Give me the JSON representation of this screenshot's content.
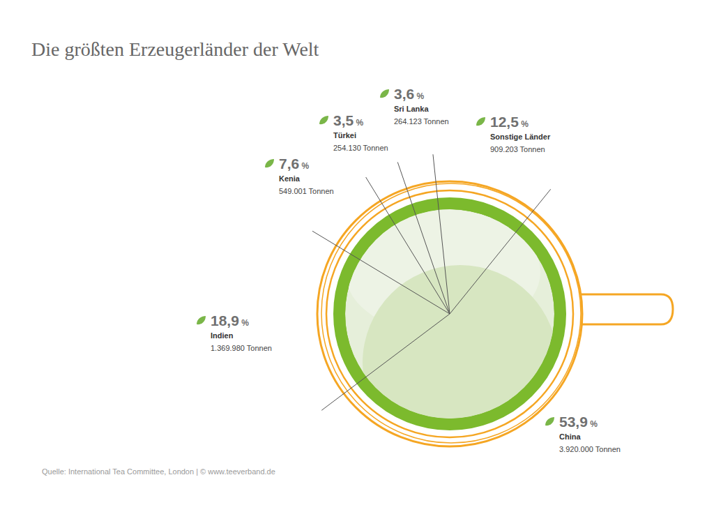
{
  "chart_data": {
    "type": "pie",
    "title": "Die größten Erzeugerländer der Welt",
    "source": "Quelle: International Tea Committee, London | © www.teeverband.de",
    "categories": [
      "China",
      "Indien",
      "Kenia",
      "Türkei",
      "Sri Lanka",
      "Sonstige Länder"
    ],
    "values": [
      53.9,
      18.9,
      7.6,
      3.5,
      3.6,
      12.5
    ],
    "value_labels": [
      "53,9 %",
      "18,9 %",
      "7,6 %",
      "3,5 %",
      "3,6 %",
      "12,5 %"
    ],
    "tonnes_labels": [
      "3.920.000 Tonnen",
      "1.369.980 Tonnen",
      "549.001 Tonnen",
      "254.130 Tonnen",
      "264.123 Tonnen",
      "909.203 Tonnen"
    ],
    "data_labels": true
  }
}
